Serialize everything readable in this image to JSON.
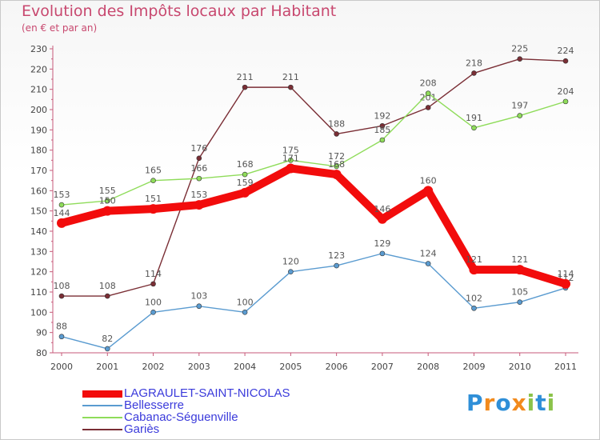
{
  "header": {
    "title": "Evolution des Impôts locaux par Habitant",
    "subtitle": "(en € et par an)"
  },
  "chart_data": {
    "type": "line",
    "title": "Evolution des Impôts locaux par Habitant",
    "subtitle": "(en € et par an)",
    "xlabel": "",
    "ylabel": "",
    "x": [
      "2000",
      "2001",
      "2002",
      "2003",
      "2004",
      "2005",
      "2006",
      "2007",
      "2008",
      "2009",
      "2010",
      "2011"
    ],
    "ylim": [
      80,
      230
    ],
    "yticks": [
      80,
      90,
      100,
      110,
      120,
      130,
      140,
      150,
      160,
      170,
      180,
      190,
      200,
      210,
      220,
      230
    ],
    "grid": false,
    "legend_position": "bottom-left",
    "series": [
      {
        "name": "Gariès",
        "color": "#7a2e35",
        "values": [
          108,
          108,
          114,
          176,
          211,
          211,
          188,
          192,
          201,
          218,
          225,
          224
        ]
      },
      {
        "name": "Cabanac-Séguenville",
        "color": "#8fdc5a",
        "values": [
          153,
          155,
          165,
          166,
          168,
          175,
          172,
          185,
          208,
          191,
          197,
          204
        ]
      },
      {
        "name": "Bellesserre",
        "color": "#5a9bd0",
        "values": [
          88,
          82,
          100,
          103,
          100,
          120,
          123,
          129,
          124,
          102,
          105,
          112
        ]
      },
      {
        "name": "LAGRAULET-SAINT-NICOLAS",
        "color": "#f20c0c",
        "values": [
          144,
          150,
          151,
          153,
          159,
          171,
          168,
          146,
          160,
          121,
          121,
          114
        ]
      }
    ]
  },
  "legend": [
    {
      "label": "LAGRAULET-SAINT-NICOLAS",
      "color": "#f20c0c"
    },
    {
      "label": "Bellesserre",
      "color": "#5a9bd0"
    },
    {
      "label": "Cabanac-Séguenville",
      "color": "#8fdc5a"
    },
    {
      "label": "Gariès",
      "color": "#7a2e35"
    }
  ],
  "logo": {
    "letters": [
      "P",
      "r",
      "o",
      "x",
      "i",
      "t",
      "i"
    ],
    "colors": [
      "#2f8fd8",
      "#f28a1c",
      "#2f8fd8",
      "#f28a1c",
      "#8bc34a",
      "#2f8fd8",
      "#8bc34a"
    ]
  }
}
